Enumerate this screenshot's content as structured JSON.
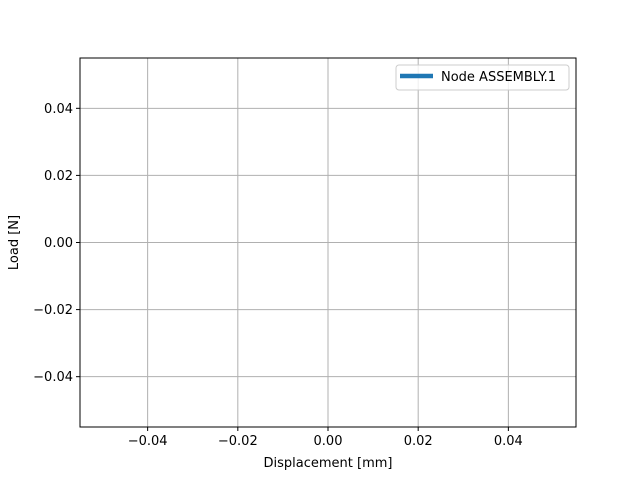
{
  "chart_data": {
    "type": "line",
    "title": "",
    "xlabel": "Displacement [mm]",
    "ylabel": "Load [N]",
    "xlim": [
      -0.055,
      0.055
    ],
    "ylim": [
      -0.055,
      0.055
    ],
    "grid": true,
    "legend_position": "top-right",
    "x_ticks": [
      {
        "value": -0.04,
        "label": "−0.04"
      },
      {
        "value": -0.02,
        "label": "−0.02"
      },
      {
        "value": 0.0,
        "label": "0.00"
      },
      {
        "value": 0.02,
        "label": "0.02"
      },
      {
        "value": 0.04,
        "label": "0.04"
      }
    ],
    "y_ticks": [
      {
        "value": -0.04,
        "label": "−0.04"
      },
      {
        "value": -0.02,
        "label": "−0.02"
      },
      {
        "value": 0.0,
        "label": "0.00"
      },
      {
        "value": 0.02,
        "label": "0.02"
      },
      {
        "value": 0.04,
        "label": "0.04"
      }
    ],
    "series": [
      {
        "name": "Node ASSEMBLY.1",
        "color": "#1f77b4",
        "x": [],
        "y": []
      }
    ]
  }
}
